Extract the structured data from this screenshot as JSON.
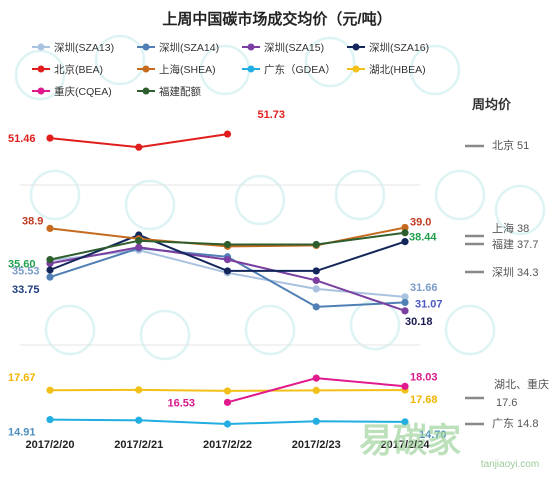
{
  "chart_data": {
    "type": "line",
    "title": "上周中国碳市场成交均价（元/吨）",
    "categories": [
      "2017/2/20",
      "2017/2/21",
      "2017/2/22",
      "2017/2/23",
      "2017/2/24"
    ],
    "legend_position": "top",
    "side_header": "周均价",
    "series": [
      {
        "name": "深圳(SZA13)",
        "color": "#a9c2e0",
        "values": [
          35.5,
          36.6,
          34.2,
          32.5,
          31.66
        ]
      },
      {
        "name": "深圳(SZA14)",
        "color": "#4f7fb5",
        "values": [
          33.75,
          36.8,
          35.9,
          30.6,
          31.07
        ]
      },
      {
        "name": "深圳(SZA15)",
        "color": "#7a3fa0",
        "values": [
          35.2,
          36.9,
          35.6,
          33.4,
          30.18
        ]
      },
      {
        "name": "深圳(SZA16)",
        "color": "#13265a",
        "values": [
          34.5,
          38.2,
          34.4,
          34.4,
          37.5
        ]
      },
      {
        "name": "北京(BEA)",
        "color": "#e01e1e",
        "values": [
          51.46,
          50.85,
          51.73,
          null,
          null
        ]
      },
      {
        "name": "上海(SHEA)",
        "color": "#c56a1e",
        "values": [
          38.9,
          37.8,
          37.0,
          37.1,
          39.0
        ]
      },
      {
        "name": "广东（GDEA）",
        "color": "#22aee0",
        "values": [
          14.91,
          14.85,
          14.5,
          14.75,
          14.7
        ]
      },
      {
        "name": "湖北(HBEA)",
        "color": "#f2c018",
        "values": [
          17.67,
          17.7,
          17.6,
          17.65,
          17.68
        ]
      },
      {
        "name": "重庆(CQEA)",
        "color": "#e0198c",
        "values": [
          null,
          null,
          16.53,
          18.8,
          18.03
        ]
      },
      {
        "name": "福建配额",
        "color": "#2e5e2e",
        "values": [
          35.6,
          37.6,
          37.2,
          37.2,
          38.44
        ]
      }
    ],
    "data_labels": [
      {
        "text": "51.46",
        "color": "#e01e1e"
      },
      {
        "text": "51.73",
        "color": "#e01e1e"
      },
      {
        "text": "38.9",
        "color": "#c0391f"
      },
      {
        "text": "35.60",
        "color": "#22a050"
      },
      {
        "text": "35.53",
        "color": "#7a9cc8"
      },
      {
        "text": "33.75",
        "color": "#1f3d80"
      },
      {
        "text": "39.0",
        "color": "#c0391f"
      },
      {
        "text": "38.44",
        "color": "#22a050"
      },
      {
        "text": "31.66",
        "color": "#7a9cc8"
      },
      {
        "text": "31.07",
        "color": "#4a58c0"
      },
      {
        "text": "30.18",
        "color": "#1a1a50"
      },
      {
        "text": "17.67",
        "color": "#f2b400"
      },
      {
        "text": "14.91",
        "color": "#4f8fc0"
      },
      {
        "text": "16.53",
        "color": "#d8198c"
      },
      {
        "text": "18.03",
        "color": "#d8198c"
      },
      {
        "text": "17.68",
        "color": "#f2b400"
      },
      {
        "text": "14.70",
        "color": "#4f8fc0"
      }
    ],
    "weekly_average_labels": [
      {
        "text": "北京 51"
      },
      {
        "text": "上海 38"
      },
      {
        "text": "福建 37.7"
      },
      {
        "text": "深圳 34.3"
      },
      {
        "text": "湖北、重庆"
      },
      {
        "text": "17.6"
      },
      {
        "text": "广东 14.8"
      }
    ],
    "watermark": {
      "brand": "易碳家",
      "site": "tanjiaoyi.com"
    }
  }
}
